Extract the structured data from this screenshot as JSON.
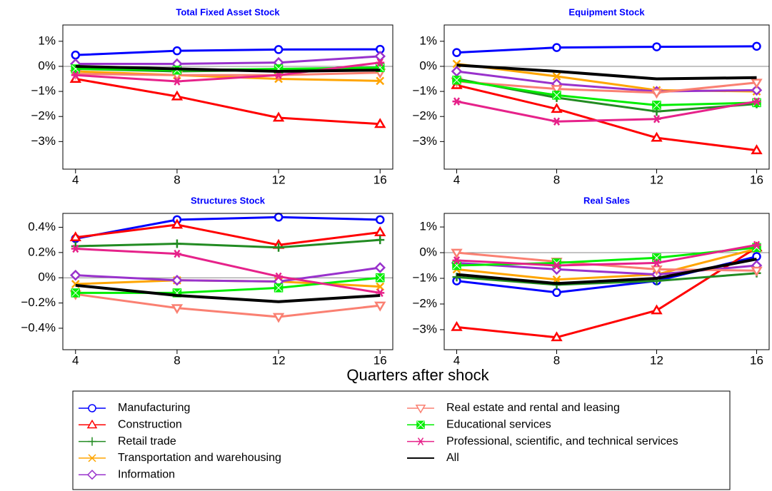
{
  "chart_data": [
    {
      "type": "line",
      "title": "Total Fixed Asset Stock",
      "x": [
        4,
        8,
        12,
        16
      ],
      "xlim": [
        3.5,
        16.5
      ],
      "xticks": [
        4,
        8,
        12,
        16
      ],
      "ylim": [
        -4.1,
        1.65
      ],
      "yticks": [
        {
          "value": 1,
          "label": "1%"
        },
        {
          "value": 0,
          "label": "0%"
        },
        {
          "value": -1,
          "label": "−1%"
        },
        {
          "value": -2,
          "label": "−2%"
        },
        {
          "value": -3,
          "label": "−3%"
        }
      ],
      "series": [
        {
          "values": [
            0.45,
            0.62,
            0.67,
            0.68
          ]
        },
        {
          "values": [
            -0.5,
            -1.2,
            -2.05,
            -2.3
          ]
        },
        {
          "values": [
            -0.1,
            -0.2,
            -0.15,
            -0.1
          ]
        },
        {
          "values": [
            -0.2,
            -0.35,
            -0.5,
            -0.58
          ]
        },
        {
          "values": [
            0.1,
            0.1,
            0.15,
            0.4
          ]
        },
        {
          "values": [
            -0.3,
            -0.35,
            -0.35,
            -0.25
          ]
        },
        {
          "values": [
            -0.1,
            -0.15,
            -0.1,
            -0.05
          ]
        },
        {
          "values": [
            -0.35,
            -0.6,
            -0.35,
            0.15
          ]
        },
        {
          "values": [
            0,
            -0.1,
            -0.2,
            -0.15
          ]
        }
      ]
    },
    {
      "type": "line",
      "title": "Equipment Stock",
      "x": [
        4,
        8,
        12,
        16
      ],
      "xlim": [
        3.5,
        16.5
      ],
      "xticks": [
        4,
        8,
        12,
        16
      ],
      "ylim": [
        -4.1,
        1.65
      ],
      "yticks": [
        {
          "value": 1,
          "label": "1%"
        },
        {
          "value": 0,
          "label": "0%"
        },
        {
          "value": -1,
          "label": "−1%"
        },
        {
          "value": -2,
          "label": "−2%"
        },
        {
          "value": -3,
          "label": "−3%"
        }
      ],
      "series": [
        {
          "values": [
            0.55,
            0.75,
            0.78,
            0.8
          ]
        },
        {
          "values": [
            -0.75,
            -1.7,
            -2.85,
            -3.35
          ]
        },
        {
          "values": [
            -0.5,
            -1.25,
            -1.8,
            -1.5
          ]
        },
        {
          "values": [
            0.1,
            -0.4,
            -0.95,
            -1.0
          ]
        },
        {
          "values": [
            -0.2,
            -0.7,
            -1.0,
            -0.95
          ]
        },
        {
          "values": [
            -0.6,
            -0.9,
            -1.05,
            -0.65
          ]
        },
        {
          "values": [
            -0.55,
            -1.15,
            -1.55,
            -1.45
          ]
        },
        {
          "values": [
            -1.4,
            -2.2,
            -2.1,
            -1.4
          ]
        },
        {
          "values": [
            0.05,
            -0.2,
            -0.5,
            -0.45
          ]
        }
      ]
    },
    {
      "type": "line",
      "title": "Structures Stock",
      "x": [
        4,
        8,
        12,
        16
      ],
      "xlim": [
        3.5,
        16.5
      ],
      "xticks": [
        4,
        8,
        12,
        16
      ],
      "ylim": [
        -0.57,
        0.51
      ],
      "yticks": [
        {
          "value": 0.4,
          "label": "0.4%"
        },
        {
          "value": 0.2,
          "label": "0.2%"
        },
        {
          "value": 0,
          "label": "0%"
        },
        {
          "value": -0.2,
          "label": "−0.2%"
        },
        {
          "value": -0.4,
          "label": "−0.4%"
        }
      ],
      "series": [
        {
          "values": [
            0.31,
            0.46,
            0.48,
            0.46
          ]
        },
        {
          "values": [
            0.32,
            0.42,
            0.26,
            0.36
          ]
        },
        {
          "values": [
            0.25,
            0.27,
            0.24,
            0.3
          ]
        },
        {
          "values": [
            -0.05,
            -0.02,
            -0.03,
            -0.07
          ]
        },
        {
          "values": [
            0.02,
            -0.02,
            -0.03,
            0.08
          ]
        },
        {
          "values": [
            -0.13,
            -0.24,
            -0.31,
            -0.22
          ]
        },
        {
          "values": [
            -0.12,
            -0.12,
            -0.08,
            0.0
          ]
        },
        {
          "values": [
            0.23,
            0.19,
            0.01,
            -0.12
          ]
        },
        {
          "values": [
            -0.06,
            -0.14,
            -0.19,
            -0.14
          ]
        }
      ]
    },
    {
      "type": "line",
      "title": "Real Sales",
      "x": [
        4,
        8,
        12,
        16
      ],
      "xlim": [
        3.5,
        16.5
      ],
      "xticks": [
        4,
        8,
        12,
        16
      ],
      "ylim": [
        -3.78,
        1.53
      ],
      "yticks": [
        {
          "value": 1,
          "label": "1%"
        },
        {
          "value": 0,
          "label": "0%"
        },
        {
          "value": -1,
          "label": "−1%"
        },
        {
          "value": -2,
          "label": "−2%"
        },
        {
          "value": -3,
          "label": "−3%"
        }
      ],
      "series": [
        {
          "values": [
            -1.1,
            -1.55,
            -1.1,
            -0.15
          ]
        },
        {
          "values": [
            -2.9,
            -3.3,
            -2.25,
            0.2
          ]
        },
        {
          "values": [
            -0.95,
            -1.25,
            -1.1,
            -0.8
          ]
        },
        {
          "values": [
            -0.65,
            -1.05,
            -0.85,
            0.15
          ]
        },
        {
          "values": [
            -0.4,
            -0.65,
            -0.85,
            -0.5
          ]
        },
        {
          "values": [
            0.0,
            -0.35,
            -0.65,
            -0.7
          ]
        },
        {
          "values": [
            -0.5,
            -0.4,
            -0.2,
            0.2
          ]
        },
        {
          "values": [
            -0.3,
            -0.5,
            -0.4,
            0.3
          ]
        },
        {
          "values": [
            -0.85,
            -1.2,
            -1.0,
            -0.25
          ]
        }
      ]
    }
  ],
  "xlabel": "Quarters after shock",
  "legend": [
    {
      "name": "Manufacturing",
      "color": "#0000ff",
      "marker": "circle"
    },
    {
      "name": "Construction",
      "color": "#ff0000",
      "marker": "triangle"
    },
    {
      "name": "Retail trade",
      "color": "#228b22",
      "marker": "plus"
    },
    {
      "name": "Transportation and warehousing",
      "color": "#ffa500",
      "marker": "x"
    },
    {
      "name": "Information",
      "color": "#9932cc",
      "marker": "diamond"
    },
    {
      "name": "Real estate and rental and leasing",
      "color": "#fa8072",
      "marker": "triangle-down"
    },
    {
      "name": "Educational services",
      "color": "#00ee00",
      "marker": "square-x"
    },
    {
      "name": "Professional, scientific, and technical services",
      "color": "#e6228a",
      "marker": "asterisk"
    },
    {
      "name": "All",
      "color": "#000000",
      "marker": "none"
    }
  ]
}
